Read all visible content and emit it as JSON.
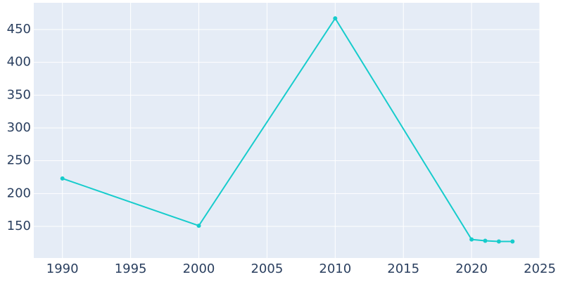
{
  "chart_data": {
    "type": "line",
    "x": [
      1990,
      2000,
      2010,
      2020,
      2021,
      2022,
      2023
    ],
    "series": [
      {
        "color": "#17cccc",
        "values": [
          223,
          151,
          467,
          130,
          128,
          127,
          127
        ]
      }
    ],
    "xlim": [
      1987.9,
      2025
    ],
    "xticks": [
      1990,
      1995,
      2000,
      2005,
      2010,
      2015,
      2020,
      2025
    ],
    "ylim": [
      101.8,
      490.7
    ],
    "yticks": [
      150,
      200,
      250,
      300,
      350,
      400,
      450
    ],
    "grid": true
  }
}
